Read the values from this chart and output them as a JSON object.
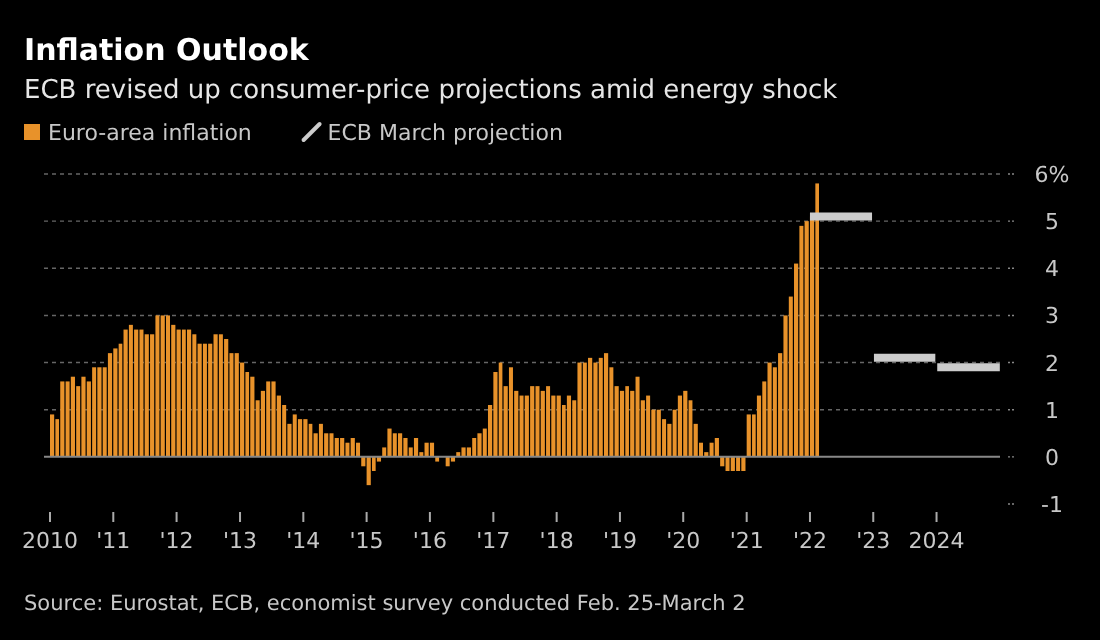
{
  "chart_data": {
    "type": "bar",
    "title": "Inflation Outlook",
    "subtitle": "ECB revised up consumer-price projections amid energy shock",
    "annotations": [
      "Source: Eurostat, ECB, economist survey conducted Feb. 25-March 2"
    ],
    "legend": "top left",
    "grid": "y",
    "xlim": [
      "2010-01",
      "2025-01"
    ],
    "xticks": [
      {
        "value": "2010",
        "label": "2010"
      },
      {
        "value": "2011",
        "label": "'11"
      },
      {
        "value": "2012",
        "label": "'12"
      },
      {
        "value": "2013",
        "label": "'13"
      },
      {
        "value": "2014",
        "label": "'14"
      },
      {
        "value": "2015",
        "label": "'15"
      },
      {
        "value": "2016",
        "label": "'16"
      },
      {
        "value": "2017",
        "label": "'17"
      },
      {
        "value": "2018",
        "label": "'18"
      },
      {
        "value": "2019",
        "label": "'19"
      },
      {
        "value": "2020",
        "label": "'20"
      },
      {
        "value": "2021",
        "label": "'21"
      },
      {
        "value": "2022",
        "label": "'22"
      },
      {
        "value": "2023",
        "label": "'23"
      },
      {
        "value": "2024",
        "label": "2024"
      }
    ],
    "ylim": [
      -1,
      6
    ],
    "yticks": [
      -1,
      0,
      1,
      2,
      3,
      4,
      5,
      {
        "value": 6,
        "label": "6%"
      }
    ],
    "series": [
      {
        "name": "Euro-area inflation",
        "color": "#e8922a",
        "x": [
          "2010-01",
          "2010-02",
          "2010-03",
          "2010-04",
          "2010-05",
          "2010-06",
          "2010-07",
          "2010-08",
          "2010-09",
          "2010-10",
          "2010-11",
          "2010-12",
          "2011-01",
          "2011-02",
          "2011-03",
          "2011-04",
          "2011-05",
          "2011-06",
          "2011-07",
          "2011-08",
          "2011-09",
          "2011-10",
          "2011-11",
          "2011-12",
          "2012-01",
          "2012-02",
          "2012-03",
          "2012-04",
          "2012-05",
          "2012-06",
          "2012-07",
          "2012-08",
          "2012-09",
          "2012-10",
          "2012-11",
          "2012-12",
          "2013-01",
          "2013-02",
          "2013-03",
          "2013-04",
          "2013-05",
          "2013-06",
          "2013-07",
          "2013-08",
          "2013-09",
          "2013-10",
          "2013-11",
          "2013-12",
          "2014-01",
          "2014-02",
          "2014-03",
          "2014-04",
          "2014-05",
          "2014-06",
          "2014-07",
          "2014-08",
          "2014-09",
          "2014-10",
          "2014-11",
          "2014-12",
          "2015-01",
          "2015-02",
          "2015-03",
          "2015-04",
          "2015-05",
          "2015-06",
          "2015-07",
          "2015-08",
          "2015-09",
          "2015-10",
          "2015-11",
          "2015-12",
          "2016-01",
          "2016-02",
          "2016-03",
          "2016-04",
          "2016-05",
          "2016-06",
          "2016-07",
          "2016-08",
          "2016-09",
          "2016-10",
          "2016-11",
          "2016-12",
          "2017-01",
          "2017-02",
          "2017-03",
          "2017-04",
          "2017-05",
          "2017-06",
          "2017-07",
          "2017-08",
          "2017-09",
          "2017-10",
          "2017-11",
          "2017-12",
          "2018-01",
          "2018-02",
          "2018-03",
          "2018-04",
          "2018-05",
          "2018-06",
          "2018-07",
          "2018-08",
          "2018-09",
          "2018-10",
          "2018-11",
          "2018-12",
          "2019-01",
          "2019-02",
          "2019-03",
          "2019-04",
          "2019-05",
          "2019-06",
          "2019-07",
          "2019-08",
          "2019-09",
          "2019-10",
          "2019-11",
          "2019-12",
          "2020-01",
          "2020-02",
          "2020-03",
          "2020-04",
          "2020-05",
          "2020-06",
          "2020-07",
          "2020-08",
          "2020-09",
          "2020-10",
          "2020-11",
          "2020-12",
          "2021-01",
          "2021-02",
          "2021-03",
          "2021-04",
          "2021-05",
          "2021-06",
          "2021-07",
          "2021-08",
          "2021-09",
          "2021-10",
          "2021-11",
          "2021-12",
          "2022-01",
          "2022-02"
        ],
        "values": [
          0.9,
          0.8,
          1.6,
          1.6,
          1.7,
          1.5,
          1.7,
          1.6,
          1.9,
          1.9,
          1.9,
          2.2,
          2.3,
          2.4,
          2.7,
          2.8,
          2.7,
          2.7,
          2.6,
          2.6,
          3.0,
          3.0,
          3.0,
          2.8,
          2.7,
          2.7,
          2.7,
          2.6,
          2.4,
          2.4,
          2.4,
          2.6,
          2.6,
          2.5,
          2.2,
          2.2,
          2.0,
          1.8,
          1.7,
          1.2,
          1.4,
          1.6,
          1.6,
          1.3,
          1.1,
          0.7,
          0.9,
          0.8,
          0.8,
          0.7,
          0.5,
          0.7,
          0.5,
          0.5,
          0.4,
          0.4,
          0.3,
          0.4,
          0.3,
          -0.2,
          -0.6,
          -0.3,
          -0.1,
          0.2,
          0.6,
          0.5,
          0.5,
          0.4,
          0.2,
          0.4,
          0.1,
          0.3,
          0.3,
          -0.1,
          0.0,
          -0.2,
          -0.1,
          0.1,
          0.2,
          0.2,
          0.4,
          0.5,
          0.6,
          1.1,
          1.8,
          2.0,
          1.5,
          1.9,
          1.4,
          1.3,
          1.3,
          1.5,
          1.5,
          1.4,
          1.5,
          1.3,
          1.3,
          1.1,
          1.3,
          1.2,
          2.0,
          2.0,
          2.1,
          2.0,
          2.1,
          2.2,
          1.9,
          1.5,
          1.4,
          1.5,
          1.4,
          1.7,
          1.2,
          1.3,
          1.0,
          1.0,
          0.8,
          0.7,
          1.0,
          1.3,
          1.4,
          1.2,
          0.7,
          0.3,
          0.1,
          0.3,
          0.4,
          -0.2,
          -0.3,
          -0.3,
          -0.3,
          -0.3,
          0.9,
          0.9,
          1.3,
          1.6,
          2.0,
          1.9,
          2.2,
          3.0,
          3.4,
          4.1,
          4.9,
          5.0,
          5.1,
          5.8
        ]
      },
      {
        "name": "ECB March projection",
        "type": "line",
        "color": "#cccccc",
        "x": [
          "2022-01",
          "2022-12-25",
          "2022-12-28",
          "2023-01-05",
          "2023-12-25",
          "2023-12-28",
          "2024-01-05",
          "2024-12-31"
        ],
        "values": [
          5.1,
          5.1,
          null,
          2.1,
          2.1,
          null,
          1.9,
          1.9
        ]
      }
    ]
  }
}
